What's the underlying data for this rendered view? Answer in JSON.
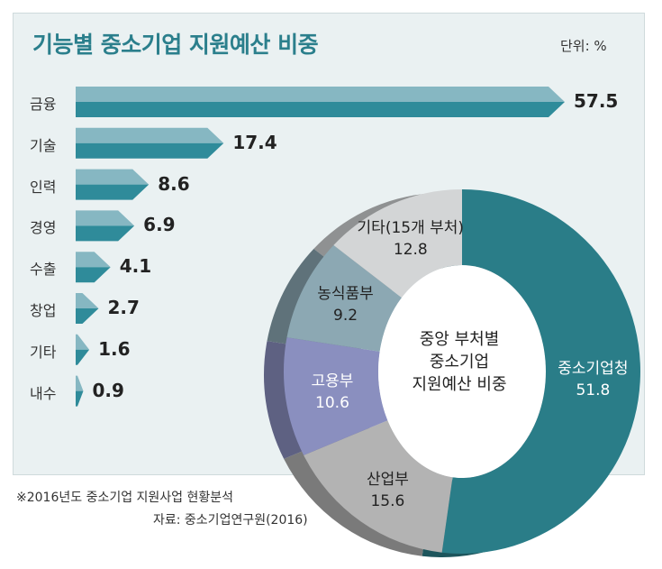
{
  "bar_chart": {
    "title": "기능별 중소기업 지원예산 비중",
    "unit": "단위: %"
  },
  "donut_chart": {
    "center_text": [
      "중앙 부처별",
      "중소기업",
      "지원예산 비중"
    ]
  },
  "footnote": "※2016년도 중소기업 지원사업 현황분석",
  "source": "자료: 중소기업연구원(2016)",
  "colors": {
    "bar_top": "#86b7c2",
    "bar_bottom": "#2f8b9a",
    "panel_bg": "#eaf1f2",
    "title": "#2b7f8c"
  },
  "chart_data": [
    {
      "type": "bar",
      "orientation": "horizontal",
      "title": "기능별 중소기업 지원예산 비중",
      "unit": "단위: %",
      "categories": [
        "금융",
        "기술",
        "인력",
        "경영",
        "수출",
        "창업",
        "기타",
        "내수"
      ],
      "values": [
        57.5,
        17.4,
        8.6,
        6.9,
        4.1,
        2.7,
        1.6,
        0.9
      ],
      "xlim": [
        0,
        57.5
      ],
      "grid": false,
      "legend": "none"
    },
    {
      "type": "pie",
      "style": "donut",
      "title": "중앙 부처별 중소기업 지원예산 비중",
      "slices": [
        {
          "label": "중소기업청",
          "value": 51.8,
          "color": "#2a7d88"
        },
        {
          "label": "산업부",
          "value": 15.6,
          "color": "#b3b3b3"
        },
        {
          "label": "고용부",
          "value": 10.6,
          "color": "#8a8fbf"
        },
        {
          "label": "농식품부",
          "value": 9.2,
          "color": "#8ca8b3"
        },
        {
          "label": "기타(15개 부처)",
          "value": 12.8,
          "color": "#d3d5d6"
        }
      ]
    }
  ]
}
